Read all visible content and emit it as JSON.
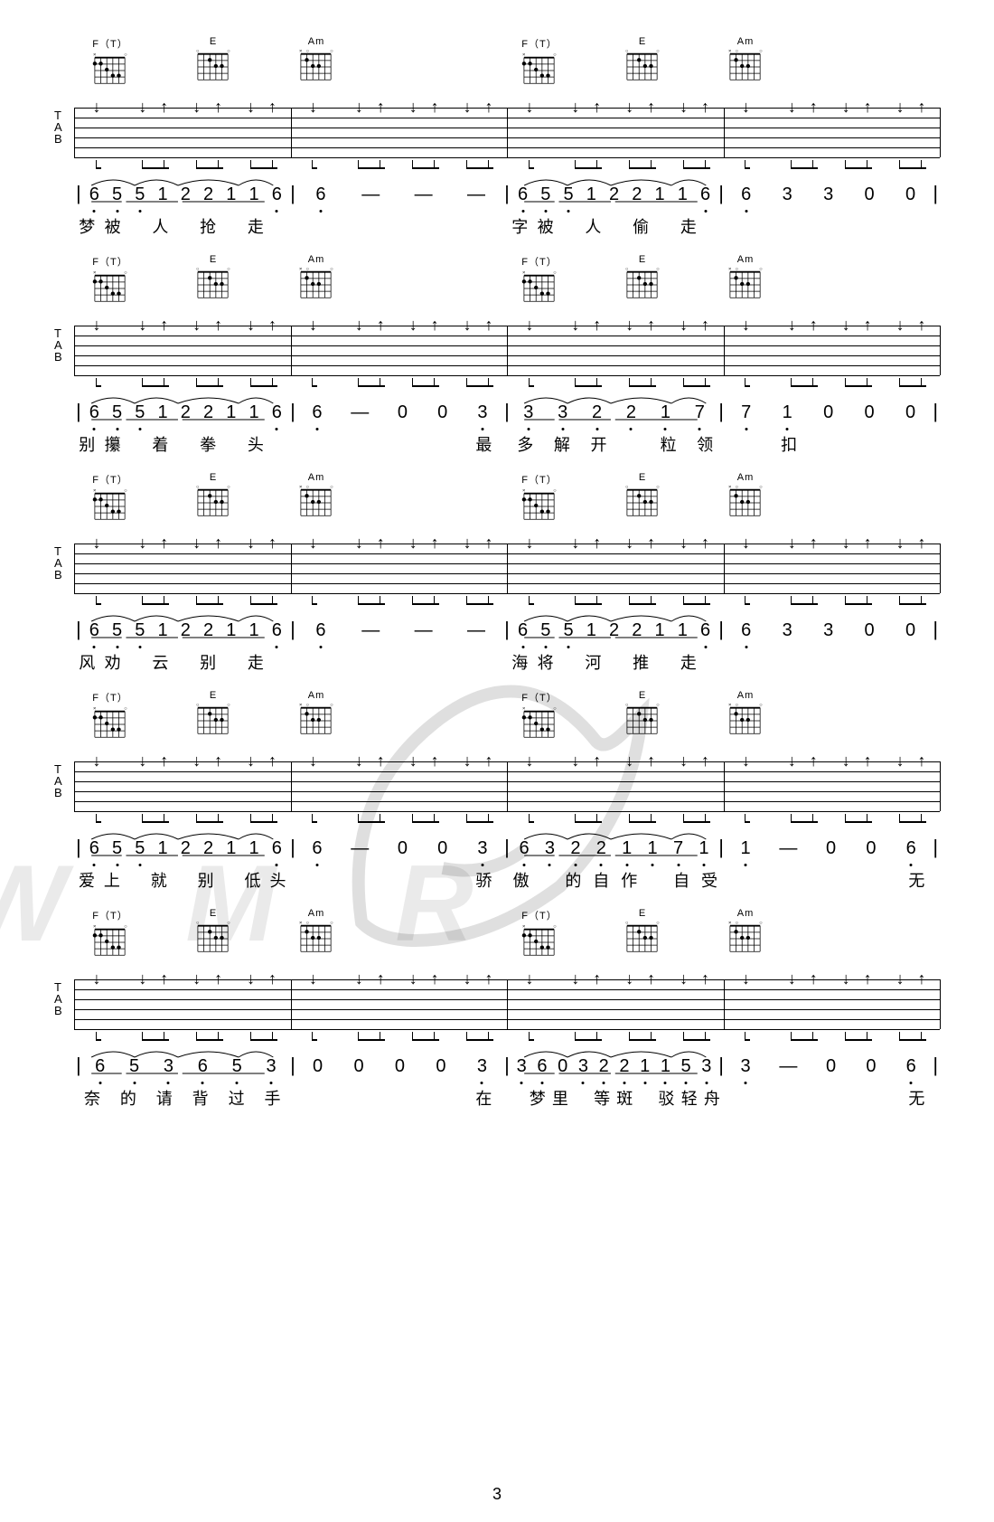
{
  "page_number": "3",
  "chord_sequence": [
    "F（T）",
    "E",
    "Am",
    "F（T）",
    "E",
    "Am"
  ],
  "chord_diagrams": {
    "F_T": {
      "name": "F（T）",
      "markers": "x-top",
      "dots": [
        [
          1,
          0
        ],
        [
          1,
          1
        ],
        [
          2,
          2
        ],
        [
          3,
          3
        ],
        [
          3,
          4
        ]
      ]
    },
    "E": {
      "name": "E",
      "markers": "open",
      "dots": [
        [
          1,
          2
        ],
        [
          2,
          3
        ],
        [
          2,
          4
        ]
      ]
    },
    "Am": {
      "name": "Am",
      "markers": "x-open",
      "dots": [
        [
          1,
          1
        ],
        [
          2,
          2
        ],
        [
          2,
          3
        ]
      ]
    }
  },
  "systems": [
    {
      "jianpu": [
        [
          "6̣",
          "5̣",
          "5̣",
          "1",
          "2",
          "2",
          "1",
          "1",
          "6̣"
        ],
        [
          "6̣",
          "—",
          "—",
          "—"
        ],
        [
          "6̣",
          "5̣",
          "5̣",
          "1",
          "2",
          "2",
          "1",
          "1",
          "6̣"
        ],
        [
          "6̣",
          "3",
          "3",
          "0",
          "0"
        ]
      ],
      "lyrics": [
        [
          "梦",
          "被",
          "",
          "人",
          "",
          "抢",
          "",
          "走",
          ""
        ],
        [
          "",
          "",
          "",
          ""
        ],
        [
          "字",
          "被",
          "",
          "人",
          "",
          "偷",
          "",
          "走",
          ""
        ],
        [
          "",
          "",
          "",
          "",
          ""
        ]
      ]
    },
    {
      "jianpu": [
        [
          "6̣",
          "5̣",
          "5̣",
          "1",
          "2",
          "2",
          "1",
          "1",
          "6̣"
        ],
        [
          "6̣",
          "—",
          "0",
          "0",
          "3̣"
        ],
        [
          "3̣",
          "3̣",
          "2̣",
          "2̣",
          "1̣",
          "7̣̣"
        ],
        [
          "7̣̣",
          "1̣",
          "0",
          "0",
          "0"
        ]
      ],
      "lyrics": [
        [
          "别",
          "攥",
          "",
          "着",
          "",
          "拳",
          "",
          "头",
          ""
        ],
        [
          "",
          "",
          "",
          "",
          "最"
        ],
        [
          "多",
          "解",
          "开",
          "",
          "粒",
          "领"
        ],
        [
          "",
          "扣",
          "",
          "",
          ""
        ]
      ]
    },
    {
      "jianpu": [
        [
          "6̣",
          "5̣",
          "5̣",
          "1",
          "2",
          "2",
          "1",
          "1",
          "6̣"
        ],
        [
          "6̣",
          "—",
          "—",
          "—"
        ],
        [
          "6̣",
          "5̣",
          "5̣",
          "1",
          "2",
          "2",
          "1",
          "1",
          "6̣"
        ],
        [
          "6̣",
          "3",
          "3",
          "0",
          "0"
        ]
      ],
      "lyrics": [
        [
          "风",
          "劝",
          "",
          "云",
          "",
          "别",
          "",
          "走",
          ""
        ],
        [
          "",
          "",
          "",
          ""
        ],
        [
          "海",
          "将",
          "",
          "河",
          "",
          "推",
          "",
          "走",
          ""
        ],
        [
          "",
          "",
          "",
          "",
          ""
        ]
      ]
    },
    {
      "jianpu": [
        [
          "6̣",
          "5̣",
          "5̣",
          "1",
          "2",
          "2",
          "1",
          "1",
          "6̣"
        ],
        [
          "6̣",
          "—",
          "0",
          "0",
          "3̣"
        ],
        [
          "6̣",
          "3̣",
          "2̣",
          "2̣",
          "1̣",
          "1̣",
          "7̣̣",
          "1̣"
        ],
        [
          "1̣",
          "—",
          "0",
          "0",
          "6̣"
        ]
      ],
      "lyrics": [
        [
          "爱",
          "上",
          "",
          "就",
          "",
          "别",
          "",
          "低",
          "头"
        ],
        [
          "",
          "",
          "",
          "",
          "骄"
        ],
        [
          "傲",
          "",
          "的",
          "自",
          "作",
          "",
          "自",
          "受"
        ],
        [
          "",
          "",
          "",
          "",
          "无"
        ]
      ]
    },
    {
      "jianpu": [
        [
          "6̣",
          "5̣",
          "3̣",
          "6̣",
          "5̣",
          "3̣"
        ],
        [
          "0",
          "0",
          "0",
          "0",
          "3̣"
        ],
        [
          "3̣",
          "6̣",
          "0",
          "3̣",
          "2̣",
          "2̣",
          "1̣",
          "1̣",
          "5̣",
          "3̣"
        ],
        [
          "3̣",
          "—",
          "0",
          "0",
          "6̣"
        ]
      ],
      "lyrics": [
        [
          "奈",
          "的",
          "请",
          "背",
          "过",
          "手"
        ],
        [
          "",
          "",
          "",
          "",
          "在"
        ],
        [
          "",
          "梦",
          "里",
          "",
          "等",
          "斑",
          "",
          "驳",
          "轻",
          "舟"
        ],
        [
          "",
          "",
          "",
          "",
          "无"
        ]
      ]
    }
  ]
}
